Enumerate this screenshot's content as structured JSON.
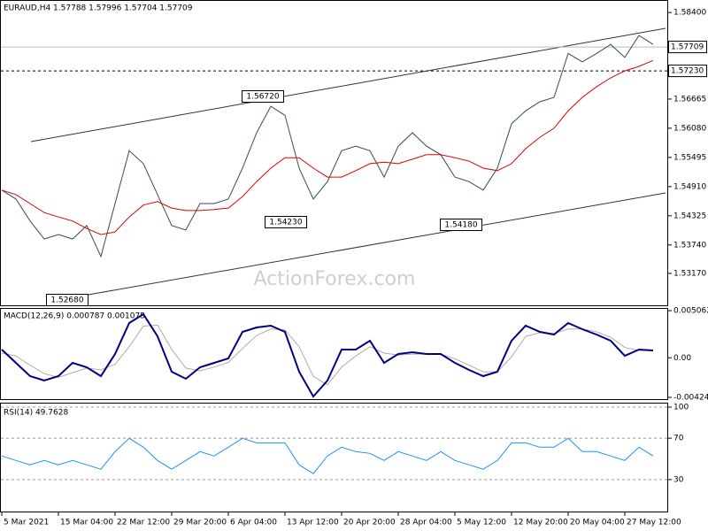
{
  "watermark": "ActionForex.com",
  "annotations": [
    "1.56720",
    "1.54230",
    "1.54180",
    "1.52680"
  ],
  "chart_data": [
    {
      "type": "line",
      "title": "EURAUD,H4  1.57788 1.57996 1.57704 1.57709",
      "x": [
        0,
        8,
        16,
        24,
        32,
        40,
        48,
        56,
        64,
        72,
        80,
        88,
        96,
        104,
        112,
        120,
        128,
        136,
        144,
        152,
        160,
        168,
        176,
        184,
        192,
        200,
        208,
        216,
        224,
        232,
        240,
        248,
        256,
        264,
        272,
        280,
        288,
        296,
        304,
        312,
        320,
        328,
        336,
        344,
        352,
        360,
        368
      ],
      "xlim": [
        0,
        376
      ],
      "ylim": [
        1.5253,
        1.5858
      ],
      "yticks": [
        {
          "value": 1.584,
          "label": "1.58400"
        },
        1.56665,
        {
          "value": 1.5608,
          "label": "1.56080"
        },
        1.55495,
        {
          "value": 1.5491,
          "label": "1.54910"
        },
        1.54325,
        {
          "value": 1.5374,
          "label": "1.53740"
        },
        {
          "value": 1.5317,
          "label": "1.53170"
        }
      ],
      "grid": false,
      "hlines": [
        {
          "value": 1.57709,
          "label": "1.57709",
          "style": "solid"
        },
        {
          "value": 1.5723,
          "label": "1.57230",
          "style": "dashed"
        }
      ],
      "series": [
        {
          "color": "#2f4f4f",
          "values": [
            1.5484,
            1.5466,
            1.5422,
            1.5386,
            1.5395,
            1.5386,
            1.5413,
            1.5351,
            1.5457,
            1.5563,
            1.5537,
            1.5475,
            1.5413,
            1.5404,
            1.5457,
            1.5457,
            1.5466,
            1.5528,
            1.5599,
            1.5652,
            1.5634,
            1.5528,
            1.5466,
            1.5501,
            1.5563,
            1.5572,
            1.5563,
            1.551,
            1.5572,
            1.5599,
            1.5572,
            1.5555,
            1.551,
            1.5501,
            1.5484,
            1.5528,
            1.5617,
            1.5643,
            1.5661,
            1.567,
            1.5758,
            1.5741,
            1.5758,
            1.5776,
            1.575,
            1.5794,
            1.5776
          ]
        },
        {
          "color": "#e00000",
          "values": [
            1.5484,
            1.5475,
            1.5457,
            1.5439,
            1.543,
            1.5422,
            1.5407,
            1.5395,
            1.54,
            1.543,
            1.5454,
            1.5461,
            1.5448,
            1.5443,
            1.5443,
            1.5445,
            1.5448,
            1.5471,
            1.5501,
            1.5528,
            1.5549,
            1.5549,
            1.5528,
            1.551,
            1.551,
            1.5523,
            1.5537,
            1.554,
            1.5537,
            1.5546,
            1.5555,
            1.5555,
            1.5549,
            1.5542,
            1.5528,
            1.5523,
            1.5537,
            1.5567,
            1.559,
            1.5608,
            1.5643,
            1.567,
            1.5691,
            1.5709,
            1.5723,
            1.5732,
            1.5744
          ]
        }
      ]
    },
    {
      "type": "line",
      "title": "MACD(12,26,9) 0.000787 0.001075",
      "x": [
        0,
        8,
        16,
        24,
        32,
        40,
        48,
        56,
        64,
        72,
        80,
        88,
        96,
        104,
        112,
        120,
        128,
        136,
        144,
        152,
        160,
        168,
        176,
        184,
        192,
        200,
        208,
        216,
        224,
        232,
        240,
        248,
        256,
        264,
        272,
        280,
        288,
        296,
        304,
        312,
        320,
        328,
        336,
        344,
        352,
        360,
        368
      ],
      "xlim": [
        0,
        376
      ],
      "ylim": [
        -0.004248,
        0.005062
      ],
      "yticks": [
        0.005062,
        {
          "value": 0,
          "label": "0.00"
        },
        -0.004248
      ],
      "grid": false,
      "series": [
        {
          "color": "#b8a8a8",
          "values": [
            0.0005,
            0.0002,
            -0.0008,
            -0.0017,
            -0.0021,
            -0.0016,
            -0.0011,
            -0.0013,
            -0.0007,
            0.0012,
            0.0034,
            0.0035,
            0.0009,
            -0.0011,
            -0.0014,
            -0.001,
            -0.0005,
            0.001,
            0.0024,
            0.0031,
            0.003,
            0.0012,
            -0.002,
            -0.0029,
            -0.001,
            0.0002,
            0.0012,
            0.0005,
            0.0003,
            0.0004,
            0.0004,
            0.0004,
            -0.0001,
            -0.0008,
            -0.0015,
            -0.0015,
            0.0001,
            0.0023,
            0.0027,
            0.0026,
            0.0031,
            0.0031,
            0.0028,
            0.0022,
            0.0011,
            0.0008,
            0.0008
          ]
        },
        {
          "color": "#000080",
          "values": [
            0.00088,
            -0.00054,
            -0.00197,
            -0.00244,
            -0.00197,
            -0.00054,
            -0.00102,
            -0.00197,
            0.00041,
            0.00373,
            0.00468,
            0.00231,
            -0.00149,
            -0.00225,
            -0.00102,
            -0.00054,
            -7e-05,
            0.00278,
            0.00326,
            0.00345,
            0.00278,
            -0.00149,
            -0.00415,
            -0.00244,
            0.00088,
            0.00088,
            0.00183,
            -0.00054,
            0.00041,
            0.0006,
            0.00041,
            0.00041,
            -0.00054,
            -0.0013,
            -0.00197,
            -0.00149,
            0.00183,
            0.00345,
            0.00278,
            0.0025,
            0.00373,
            0.00307,
            0.0025,
            0.00183,
            0.00022,
            0.00088,
            0.00079
          ]
        }
      ]
    },
    {
      "type": "line",
      "title": "RSI(14) 49.7628",
      "x": [
        0,
        8,
        16,
        24,
        32,
        40,
        48,
        56,
        64,
        72,
        80,
        88,
        96,
        104,
        112,
        120,
        128,
        136,
        144,
        152,
        160,
        168,
        176,
        184,
        192,
        200,
        208,
        216,
        224,
        232,
        240,
        248,
        256,
        264,
        272,
        280,
        288,
        296,
        304,
        312,
        320,
        328,
        336,
        344,
        352,
        360,
        368
      ],
      "xlim": [
        0,
        376
      ],
      "ylim": [
        0,
        100
      ],
      "yticks": [
        100,
        70,
        30
      ],
      "grid": true,
      "xticks": [
        {
          "value": 0,
          "label": "5 Mar 2021"
        },
        {
          "value": 32,
          "label": "15 Mar 04:00"
        },
        {
          "value": 64,
          "label": "22 Mar 12:00"
        },
        {
          "value": 96,
          "label": "29 Mar 20:00"
        },
        {
          "value": 128,
          "label": "6 Apr 04:00"
        },
        {
          "value": 160,
          "label": "13 Apr 12:00"
        },
        {
          "value": 192,
          "label": "20 Apr 20:00"
        },
        {
          "value": 224,
          "label": "28 Apr 04:00"
        },
        {
          "value": 256,
          "label": "5 May 12:00"
        },
        {
          "value": 288,
          "label": "12 May 20:00"
        },
        {
          "value": 320,
          "label": "20 May 04:00"
        },
        {
          "value": 352,
          "label": "27 May 12:00"
        }
      ],
      "series": [
        {
          "color": "#1e90ff",
          "values": [
            52.8,
            48.5,
            44.3,
            48.5,
            44.3,
            48.5,
            44.3,
            40.0,
            57.0,
            69.8,
            61.3,
            48.5,
            40.0,
            48.5,
            57.0,
            52.8,
            61.3,
            69.8,
            65.5,
            65.5,
            65.5,
            44.3,
            35.7,
            52.8,
            61.3,
            57.0,
            55.3,
            48.5,
            57.0,
            52.8,
            48.5,
            57.0,
            48.5,
            44.3,
            40.0,
            48.5,
            65.5,
            65.5,
            61.3,
            61.3,
            69.8,
            57.0,
            57.0,
            52.8,
            48.5,
            61.3,
            52.8
          ]
        }
      ]
    }
  ]
}
